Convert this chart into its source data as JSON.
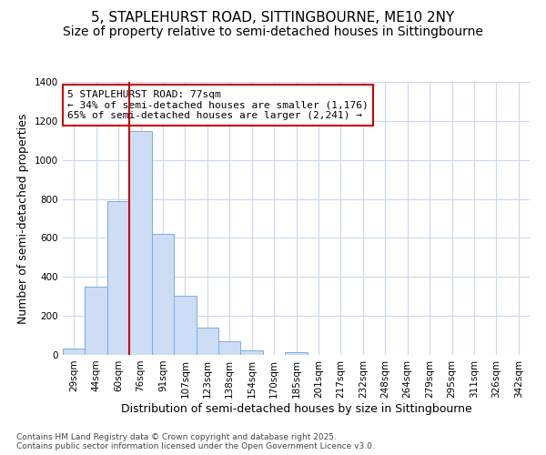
{
  "title_line1": "5, STAPLEHURST ROAD, SITTINGBOURNE, ME10 2NY",
  "title_line2": "Size of property relative to semi-detached houses in Sittingbourne",
  "xlabel": "Distribution of semi-detached houses by size in Sittingbourne",
  "ylabel": "Number of semi-detached properties",
  "bin_labels": [
    "29sqm",
    "44sqm",
    "60sqm",
    "76sqm",
    "91sqm",
    "107sqm",
    "123sqm",
    "138sqm",
    "154sqm",
    "170sqm",
    "185sqm",
    "201sqm",
    "217sqm",
    "232sqm",
    "248sqm",
    "264sqm",
    "279sqm",
    "295sqm",
    "311sqm",
    "326sqm",
    "342sqm"
  ],
  "bar_values": [
    35,
    350,
    790,
    1150,
    620,
    305,
    140,
    70,
    25,
    0,
    15,
    0,
    0,
    0,
    0,
    0,
    0,
    0,
    0,
    0,
    0
  ],
  "bar_color": "#ccddf5",
  "bar_edge_color": "#7aade0",
  "vline_x_bin": 3,
  "vline_color": "#cc0000",
  "annotation_text": "5 STAPLEHURST ROAD: 77sqm\n← 34% of semi-detached houses are smaller (1,176)\n65% of semi-detached houses are larger (2,241) →",
  "annotation_box_color": "#ffffff",
  "annotation_box_edge_color": "#cc0000",
  "ylim": [
    0,
    1400
  ],
  "yticks": [
    0,
    200,
    400,
    600,
    800,
    1000,
    1200,
    1400
  ],
  "background_color": "#ffffff",
  "plot_bg_color": "#ffffff",
  "grid_color": "#c8d8f0",
  "footer_text": "Contains HM Land Registry data © Crown copyright and database right 2025.\nContains public sector information licensed under the Open Government Licence v3.0.",
  "title_fontsize": 11,
  "subtitle_fontsize": 10,
  "axis_label_fontsize": 9,
  "tick_fontsize": 7.5,
  "annot_fontsize": 8
}
